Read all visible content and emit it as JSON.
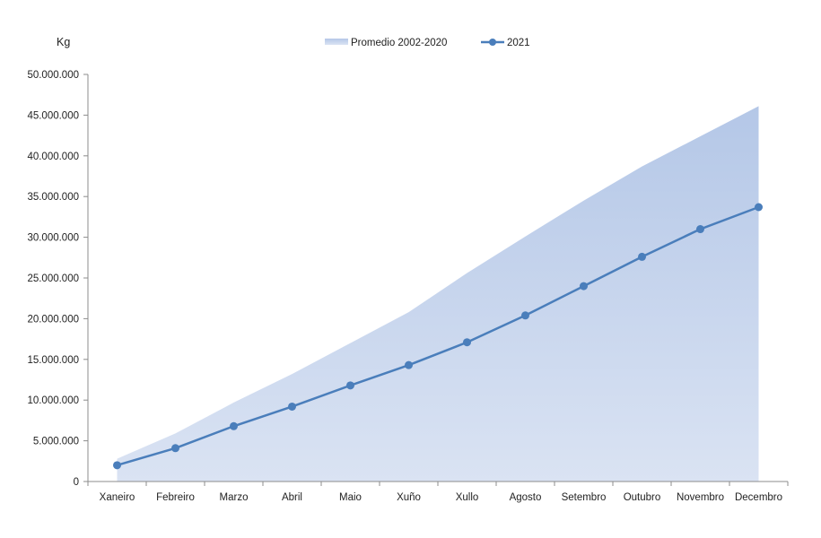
{
  "chart_data": {
    "type": "line",
    "ylabel": "Kg",
    "categories": [
      "Xaneiro",
      "Febreiro",
      "Marzo",
      "Abril",
      "Maio",
      "Xuño",
      "Xullo",
      "Agosto",
      "Setembro",
      "Outubro",
      "Novembro",
      "Decembro"
    ],
    "ylim": [
      0,
      50000000
    ],
    "yticks": [
      0,
      5000000,
      10000000,
      15000000,
      20000000,
      25000000,
      30000000,
      35000000,
      40000000,
      45000000,
      50000000
    ],
    "ytick_labels": [
      "0",
      "5.000.000",
      "10.000.000",
      "15.000.000",
      "20.000.000",
      "25.000.000",
      "30.000.000",
      "35.000.000",
      "40.000.000",
      "45.000.000",
      "50.000.000"
    ],
    "legend_position": "top-center",
    "grid": false,
    "series": [
      {
        "name": "Promedio 2002-2020",
        "style": "area",
        "color": "#b4c7e7",
        "values": [
          2800000,
          5900000,
          9700000,
          13200000,
          17000000,
          20800000,
          25600000,
          30100000,
          34500000,
          38700000,
          42400000,
          46100000
        ]
      },
      {
        "name": "2021",
        "style": "line-marker",
        "color": "#4a7ebb",
        "values": [
          2000000,
          4100000,
          6800000,
          9200000,
          11800000,
          14300000,
          17100000,
          20400000,
          24000000,
          27600000,
          31000000,
          33700000
        ]
      }
    ]
  }
}
